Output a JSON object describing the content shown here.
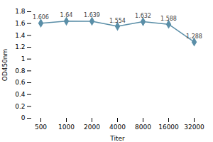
{
  "chart_data": {
    "type": "line",
    "xlabel": "Titer",
    "ylabel": "OD450nm",
    "categories": [
      "500",
      "1000",
      "2000",
      "4000",
      "8000",
      "16000",
      "32000"
    ],
    "values": [
      1.606,
      1.64,
      1.639,
      1.554,
      1.632,
      1.588,
      1.288
    ],
    "color": "#5b8fa8",
    "marker": "diamond",
    "ylim": [
      0,
      1.8
    ],
    "yticks": [
      0,
      0.2,
      0.4,
      0.6,
      0.8,
      1,
      1.2,
      1.4,
      1.6,
      1.8
    ],
    "data_labels": true,
    "grid": false
  }
}
